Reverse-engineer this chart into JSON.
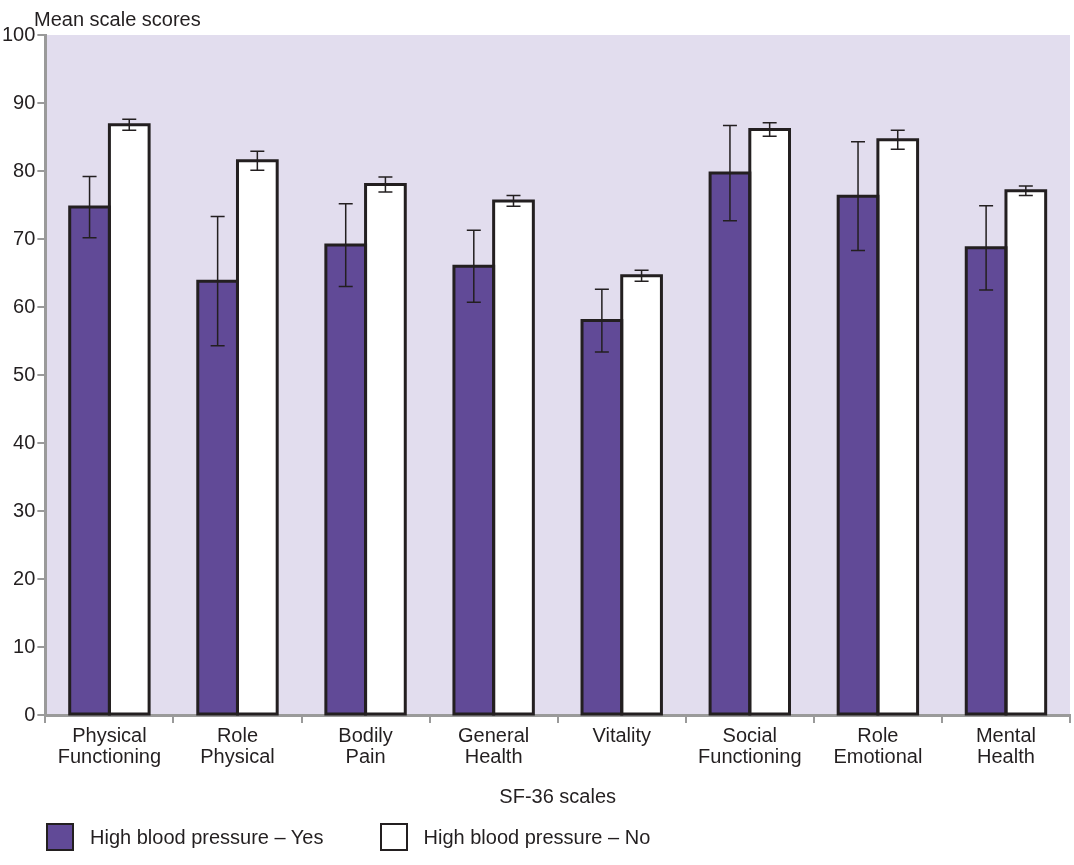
{
  "chart_data": {
    "type": "bar",
    "xlabel": "SF-36 scales",
    "ylabel": "Mean scale scores",
    "categories": [
      "Physical Functioning",
      "Role Physical",
      "Bodily Pain",
      "General Health",
      "Vitality",
      "Social Functioning",
      "Role Emotional",
      "Mental Health"
    ],
    "series": [
      {
        "name": "High blood pressure – Yes",
        "color": "#614a97",
        "values": [
          74.7,
          63.8,
          69.1,
          66.0,
          58.0,
          79.7,
          76.3,
          68.7
        ],
        "errors": [
          4.5,
          9.5,
          6.1,
          5.3,
          4.6,
          7.0,
          8.0,
          6.2
        ]
      },
      {
        "name": "High blood pressure – No",
        "color": "#ffffff",
        "values": [
          86.8,
          81.5,
          78.0,
          75.6,
          64.6,
          86.1,
          84.6,
          77.1
        ],
        "errors": [
          0.8,
          1.4,
          1.1,
          0.8,
          0.8,
          1.0,
          1.4,
          0.7
        ]
      }
    ],
    "ylim": [
      0,
      100
    ],
    "yticks": [
      0,
      10,
      20,
      30,
      40,
      50,
      60,
      70,
      80,
      90,
      100
    ],
    "legend": "bottom left"
  }
}
